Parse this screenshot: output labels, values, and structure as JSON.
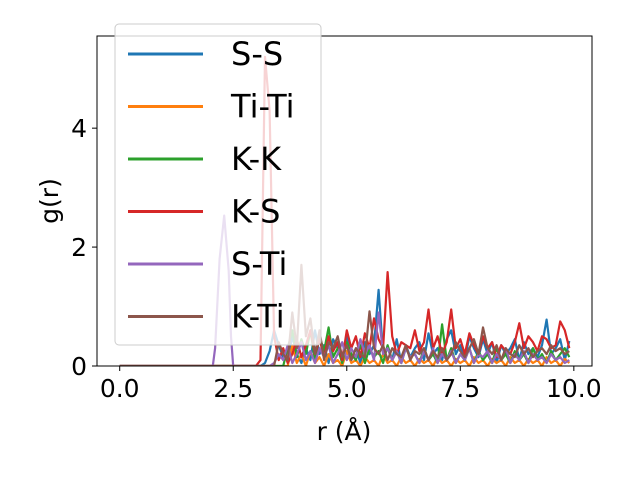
{
  "chart_data": {
    "type": "line",
    "xlabel": "r (Å)",
    "ylabel": "g(r)",
    "xlim": [
      -0.5,
      10.4
    ],
    "ylim": [
      0,
      5.55
    ],
    "xticks": [
      0.0,
      2.5,
      5.0,
      7.5,
      10.0
    ],
    "xtick_labels": [
      "0.0",
      "2.5",
      "5.0",
      "7.5",
      "10.0"
    ],
    "yticks": [
      0,
      2,
      4
    ],
    "ytick_labels": [
      "0",
      "2",
      "4"
    ],
    "grid": false,
    "legend_position": "upper-left",
    "series": [
      {
        "name": "S-S",
        "color": "#1f77b4",
        "x": [
          0.0,
          2.9,
          3.0,
          3.1,
          3.2,
          3.3,
          3.4,
          3.5,
          3.6,
          3.7,
          3.8,
          3.9,
          4.0,
          4.1,
          4.2,
          4.3,
          4.4,
          4.5,
          4.6,
          4.7,
          4.8,
          4.9,
          5.0,
          5.1,
          5.2,
          5.3,
          5.4,
          5.5,
          5.6,
          5.7,
          5.8,
          5.9,
          6.0,
          6.1,
          6.2,
          6.3,
          6.4,
          6.5,
          6.6,
          6.7,
          6.8,
          6.9,
          7.0,
          7.1,
          7.2,
          7.3,
          7.4,
          7.5,
          7.6,
          7.7,
          7.8,
          7.9,
          8.0,
          8.1,
          8.2,
          8.3,
          8.4,
          8.5,
          8.6,
          8.7,
          8.8,
          8.9,
          9.0,
          9.1,
          9.2,
          9.3,
          9.4,
          9.5,
          9.6,
          9.7,
          9.8,
          9.9
        ],
        "y": [
          0,
          0,
          0,
          0,
          0.05,
          0.25,
          0.6,
          0.35,
          0.15,
          0.1,
          0.5,
          0.2,
          0.05,
          0.3,
          0.1,
          0.6,
          0.2,
          0.35,
          0.05,
          0.45,
          0.3,
          0.15,
          0.5,
          0.1,
          0.3,
          0.05,
          0.4,
          0.2,
          0.35,
          1.28,
          0.2,
          0.3,
          0.1,
          0.45,
          0.05,
          0.35,
          0.15,
          0.3,
          0.4,
          0.1,
          0.55,
          0.2,
          0.3,
          0.1,
          0.45,
          0.6,
          0.2,
          0.35,
          0.1,
          0.5,
          0.3,
          0.15,
          0.45,
          0.2,
          0.4,
          0.05,
          0.35,
          0.2,
          0.3,
          0.45,
          0.1,
          0.4,
          0.2,
          0.3,
          0.15,
          0.35,
          0.78,
          0.2,
          0.3,
          0.45,
          0.1,
          0.42
        ]
      },
      {
        "name": "Ti-Ti",
        "color": "#ff7f0e",
        "x": [
          0.0,
          3.7,
          3.8,
          3.9,
          4.0,
          4.1,
          4.2,
          4.3,
          4.4,
          4.5,
          4.6,
          4.7,
          4.8,
          4.9,
          5.0,
          5.1,
          5.2,
          5.3,
          5.4,
          5.5,
          5.6,
          5.7,
          5.8,
          5.9,
          6.0,
          6.1,
          6.2,
          6.3,
          6.4,
          6.5,
          6.6,
          6.7,
          6.8,
          6.9,
          7.0,
          7.1,
          7.2,
          7.3,
          7.4,
          7.5,
          7.6,
          7.7,
          7.8,
          7.9,
          8.0,
          8.1,
          8.2,
          8.3,
          8.4,
          8.5,
          8.6,
          8.7,
          8.8,
          8.9,
          9.0,
          9.1,
          9.2,
          9.3,
          9.4,
          9.5,
          9.6,
          9.7,
          9.8,
          9.9
        ],
        "y": [
          0,
          0,
          0.35,
          0.05,
          0.2,
          0,
          0.25,
          0.05,
          0.15,
          0,
          0.2,
          0.05,
          0.1,
          0,
          0.25,
          0.05,
          0.1,
          0,
          0.15,
          0.05,
          0.1,
          0,
          0.2,
          0.05,
          0.1,
          0,
          0.15,
          0.05,
          0.1,
          0,
          0.12,
          0.05,
          0.1,
          0,
          0.15,
          0.05,
          0.1,
          0,
          0.12,
          0.05,
          0.1,
          0,
          0.15,
          0.05,
          0.1,
          0,
          0.12,
          0.05,
          0.1,
          0,
          0.15,
          0.05,
          0.1,
          0,
          0.12,
          0.05,
          0.1,
          0,
          0.15,
          0.05,
          0.1,
          0,
          0.12,
          0.05
        ]
      },
      {
        "name": "K-K",
        "color": "#2ca02c",
        "x": [
          0.0,
          3.6,
          3.7,
          3.8,
          3.9,
          4.0,
          4.1,
          4.2,
          4.3,
          4.4,
          4.5,
          4.6,
          4.7,
          4.8,
          4.9,
          5.0,
          5.1,
          5.2,
          5.3,
          5.4,
          5.5,
          5.6,
          5.7,
          5.8,
          5.9,
          6.0,
          6.1,
          6.2,
          6.3,
          6.4,
          6.5,
          6.6,
          6.7,
          6.8,
          6.9,
          7.0,
          7.1,
          7.2,
          7.3,
          7.4,
          7.5,
          7.6,
          7.7,
          7.8,
          7.9,
          8.0,
          8.1,
          8.2,
          8.3,
          8.4,
          8.5,
          8.6,
          8.7,
          8.8,
          8.9,
          9.0,
          9.1,
          9.2,
          9.3,
          9.4,
          9.5,
          9.6,
          9.7,
          9.8,
          9.9
        ],
        "y": [
          0,
          0,
          0.3,
          0.6,
          0.15,
          0.45,
          0.2,
          0.6,
          0.1,
          0.5,
          0.25,
          0.65,
          0.15,
          0.3,
          0.05,
          0.4,
          0.2,
          0.1,
          0.35,
          0.05,
          0.3,
          0.15,
          0.25,
          0.05,
          0.35,
          0.1,
          0.25,
          0.05,
          0.3,
          0.15,
          0.2,
          0.05,
          0.3,
          0.1,
          0.2,
          0.05,
          0.7,
          0.1,
          0.3,
          0.05,
          0.2,
          0.1,
          0.3,
          0.05,
          0.25,
          0.1,
          0.2,
          0.05,
          0.3,
          0.1,
          0.2,
          0.05,
          0.25,
          0.1,
          0.2,
          0.05,
          0.3,
          0.1,
          0.2,
          0.05,
          0.25,
          0.1,
          0.2,
          0.3,
          0.15
        ]
      },
      {
        "name": "K-S",
        "color": "#d62728",
        "x": [
          0.0,
          2.9,
          3.0,
          3.1,
          3.2,
          3.3,
          3.4,
          3.5,
          3.6,
          3.7,
          3.8,
          3.9,
          4.0,
          4.1,
          4.2,
          4.3,
          4.4,
          4.5,
          4.6,
          4.7,
          4.8,
          4.9,
          5.0,
          5.1,
          5.2,
          5.3,
          5.4,
          5.5,
          5.6,
          5.7,
          5.8,
          5.9,
          6.0,
          6.1,
          6.2,
          6.3,
          6.4,
          6.5,
          6.6,
          6.7,
          6.8,
          6.9,
          7.0,
          7.1,
          7.2,
          7.3,
          7.4,
          7.5,
          7.6,
          7.7,
          7.8,
          7.9,
          8.0,
          8.1,
          8.2,
          8.3,
          8.4,
          8.5,
          8.6,
          8.7,
          8.8,
          8.9,
          9.0,
          9.1,
          9.2,
          9.3,
          9.4,
          9.5,
          9.6,
          9.7,
          9.8,
          9.9
        ],
        "y": [
          0,
          0,
          0,
          0.1,
          5.2,
          4.3,
          0.5,
          0.1,
          0.3,
          0.05,
          0.2,
          0.45,
          0.15,
          0.35,
          0.6,
          0.2,
          0.45,
          0.15,
          0.5,
          0.25,
          0.4,
          0.1,
          0.6,
          0.3,
          0.5,
          0.15,
          0.55,
          0.3,
          0.8,
          0.45,
          0.3,
          1.58,
          0.5,
          0.2,
          0.4,
          0.35,
          0.3,
          0.6,
          0.25,
          0.4,
          0.95,
          0.3,
          0.5,
          0.2,
          0.4,
          0.95,
          0.3,
          0.45,
          0.2,
          0.55,
          0.35,
          0.2,
          0.5,
          0.3,
          0.4,
          0.15,
          0.35,
          0.25,
          0.2,
          0.4,
          0.72,
          0.3,
          0.5,
          0.4,
          0.25,
          0.5,
          0.45,
          0.3,
          0.35,
          0.75,
          0.6,
          0.3
        ]
      },
      {
        "name": "S-Ti",
        "color": "#9467bd",
        "x": [
          0.0,
          2.05,
          2.1,
          2.2,
          2.3,
          2.4,
          2.45,
          2.5,
          3.3,
          3.4,
          3.5,
          3.6,
          3.7,
          3.8,
          3.9,
          4.0,
          4.1,
          4.2,
          4.3,
          4.4,
          4.5,
          4.6,
          4.7,
          4.8,
          4.9,
          5.0,
          5.1,
          5.2,
          5.3,
          5.4,
          5.5,
          5.6,
          5.7,
          5.8,
          5.9,
          6.0,
          6.1,
          6.2,
          6.3,
          6.4,
          6.5,
          6.6,
          6.7,
          6.8,
          6.9,
          7.0,
          7.1,
          7.2,
          7.3,
          7.4,
          7.5,
          7.6,
          7.7,
          7.8,
          7.9,
          8.0,
          8.1,
          8.2,
          8.3,
          8.4,
          8.5,
          8.6,
          8.7,
          8.8,
          8.9,
          9.0,
          9.1,
          9.2,
          9.3,
          9.4,
          9.5,
          9.6,
          9.7,
          9.8,
          9.9
        ],
        "y": [
          0,
          0,
          0.3,
          1.8,
          2.53,
          1.6,
          0.5,
          0,
          0,
          0.05,
          0.2,
          0.1,
          0.35,
          0.05,
          0.2,
          0.4,
          0.1,
          0.25,
          0.05,
          0.3,
          0.15,
          0.35,
          0.05,
          0.2,
          0.4,
          0.1,
          0.3,
          0.15,
          0.45,
          0.2,
          0.35,
          0.1,
          0.9,
          0.2,
          0.3,
          0.1,
          0.25,
          0.05,
          0.3,
          0.15,
          0.2,
          0.05,
          0.25,
          0.1,
          0.3,
          0.05,
          0.2,
          0.1,
          0.25,
          0.05,
          0.2,
          0.1,
          0.3,
          0.05,
          0.2,
          0.15,
          0.25,
          0.05,
          0.2,
          0.1,
          0.3,
          0.05,
          0.2,
          0.1,
          0.25,
          0.05,
          0.2,
          0.1,
          0.15,
          0.05,
          0.2,
          0.1,
          0.15,
          0.05,
          0.1
        ]
      },
      {
        "name": "K-Ti",
        "color": "#8c564b",
        "x": [
          0.0,
          3.4,
          3.5,
          3.6,
          3.7,
          3.8,
          3.9,
          4.0,
          4.1,
          4.2,
          4.3,
          4.4,
          4.5,
          4.6,
          4.7,
          4.8,
          4.9,
          5.0,
          5.1,
          5.2,
          5.3,
          5.4,
          5.5,
          5.6,
          5.7,
          5.8,
          5.9,
          6.0,
          6.1,
          6.2,
          6.3,
          6.4,
          6.5,
          6.6,
          6.7,
          6.8,
          6.9,
          7.0,
          7.1,
          7.2,
          7.3,
          7.4,
          7.5,
          7.6,
          7.7,
          7.8,
          7.9,
          8.0,
          8.1,
          8.2,
          8.3,
          8.4,
          8.5,
          8.6,
          8.7,
          8.8,
          8.9,
          9.0,
          9.1,
          9.2,
          9.3,
          9.4,
          9.5,
          9.6,
          9.7,
          9.8,
          9.9
        ],
        "y": [
          0,
          0,
          0.4,
          0.2,
          0.1,
          0.9,
          0.3,
          1.7,
          0.5,
          0.8,
          0.2,
          0.6,
          0.1,
          0.4,
          0.3,
          0.5,
          0.15,
          0.35,
          0.1,
          0.3,
          0.2,
          0.15,
          0.92,
          0.3,
          0.2,
          0.35,
          0.1,
          0.3,
          0.2,
          0.15,
          0.35,
          0.1,
          0.25,
          0.2,
          0.3,
          0.1,
          0.25,
          0.15,
          0.3,
          0.1,
          0.2,
          0.4,
          0.25,
          0.15,
          0.3,
          0.45,
          0.2,
          0.65,
          0.3,
          0.2,
          0.35,
          0.1,
          0.3,
          0.2,
          0.15,
          0.35,
          0.2,
          0.3,
          0.15,
          0.25,
          0.3,
          0.2,
          0.35,
          0.25,
          0.3,
          0.2,
          0.25
        ]
      }
    ]
  }
}
